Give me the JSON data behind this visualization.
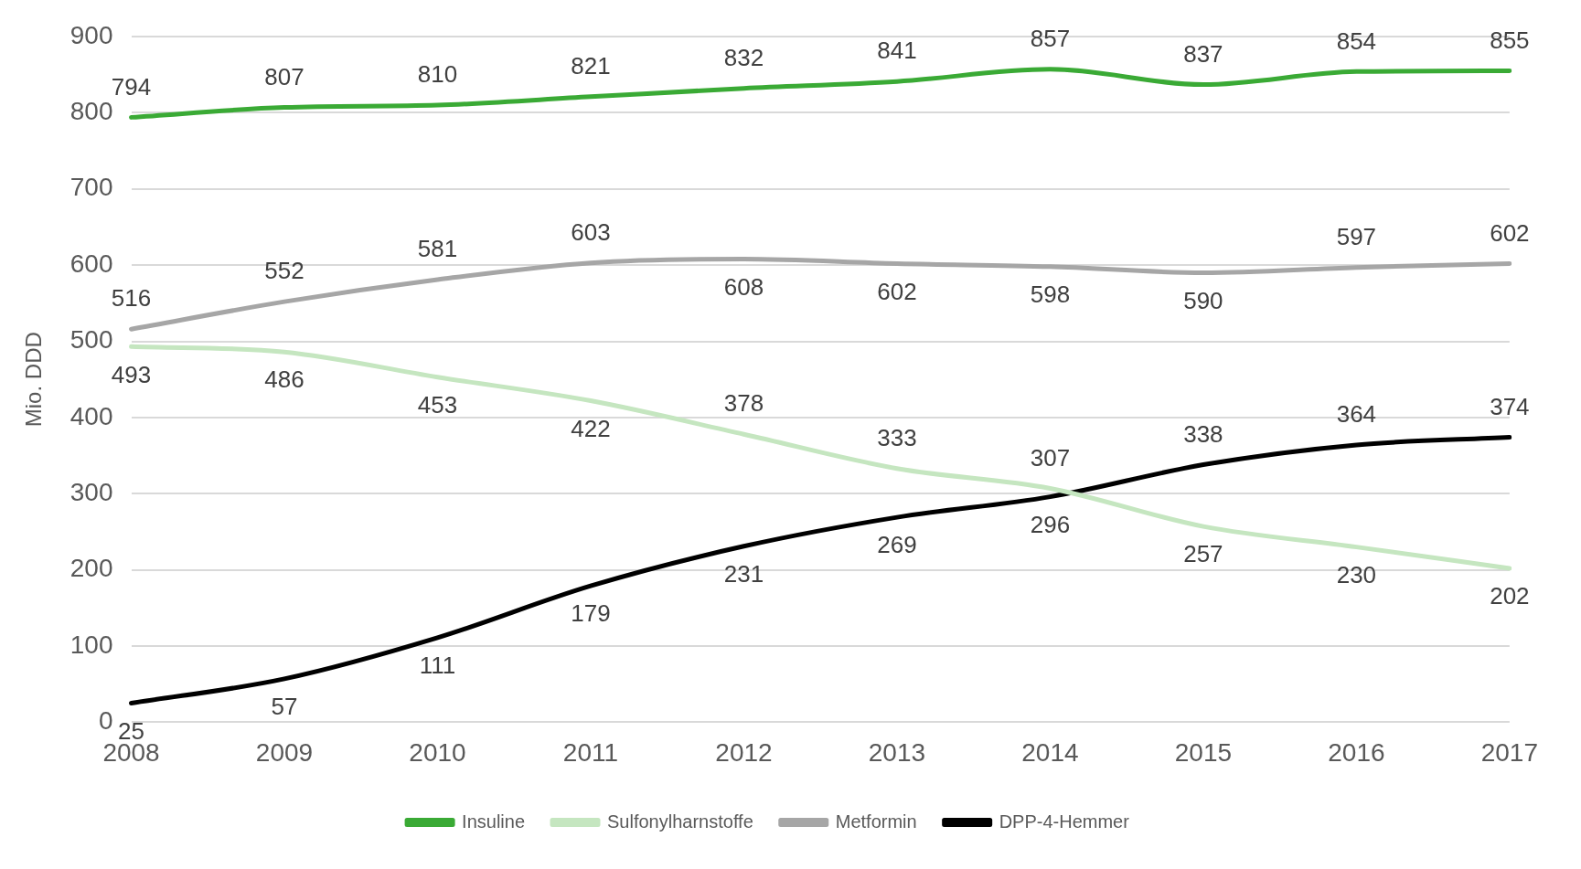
{
  "chart_data": {
    "type": "line",
    "ylabel": "Mio. DDD",
    "categories": [
      "2008",
      "2009",
      "2010",
      "2011",
      "2012",
      "2013",
      "2014",
      "2015",
      "2016",
      "2017"
    ],
    "series": [
      {
        "name": "Insuline",
        "color": "#3aaa35",
        "values": [
          794,
          807,
          810,
          821,
          832,
          841,
          857,
          837,
          854,
          855
        ]
      },
      {
        "name": "Sulfonylharnstoffe",
        "color": "#c5e6c0",
        "values": [
          493,
          486,
          453,
          422,
          378,
          333,
          307,
          257,
          230,
          202
        ]
      },
      {
        "name": "Metformin",
        "color": "#a6a6a6",
        "values": [
          516,
          552,
          581,
          603,
          608,
          602,
          598,
          590,
          597,
          602
        ]
      },
      {
        "name": "DPP-4-Hemmer",
        "color": "#000000",
        "values": [
          25,
          57,
          111,
          179,
          231,
          269,
          296,
          338,
          364,
          374
        ]
      }
    ],
    "ylim": [
      0,
      900
    ],
    "yticks": [
      0,
      100,
      200,
      300,
      400,
      500,
      600,
      700,
      800,
      900
    ],
    "grid": "y",
    "legend": "bottom",
    "data_labels": true,
    "marker": "none",
    "line_style": "solid"
  }
}
